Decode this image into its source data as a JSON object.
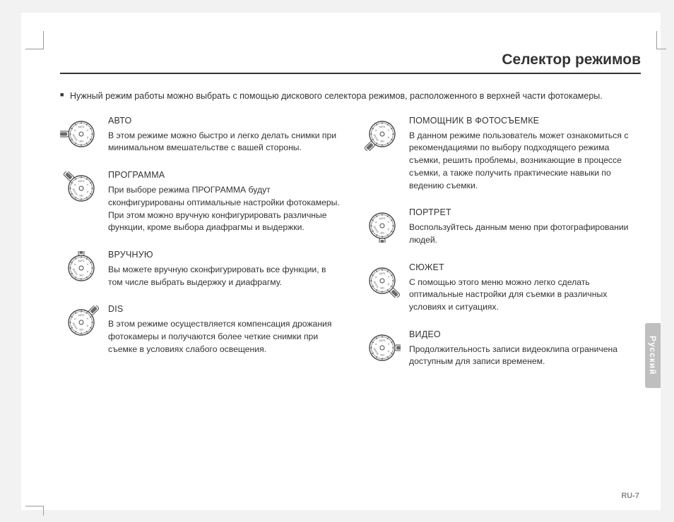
{
  "page": {
    "title": "Селектор режимов",
    "intro": "Нужный режим работы можно выбрать с помощью дискового селектора режимов, расположенного в верхней части фотокамеры.",
    "pageNumber": "RU-7",
    "sideTab": "Русский"
  },
  "dial": {
    "labels": [
      "AUTO",
      "P",
      "M",
      "DIS",
      "SCENE",
      "G"
    ],
    "stroke": "#4a4a4a",
    "fill": "#ffffff",
    "pointer_fill": "#6a6a6a"
  },
  "modes": {
    "left": [
      {
        "title": "АВТО",
        "desc": "В этом режиме можно быстро и легко делать снимки при минимальном вмешательстве с вашей стороны.",
        "pointer_angle": 0
      },
      {
        "title": "ПРОГРАММА",
        "desc": "При выборе режима ПРОГРАММА будут сконфигурированы оптимальные настройки фотокамеры. При этом можно вручную конфигурировать различные функции, кроме выбора диафрагмы и выдержки.",
        "pointer_angle": 45
      },
      {
        "title": "ВРУЧНУЮ",
        "desc": "Вы можете вручную сконфигурировать все функции, в том числе выбрать выдержку и диафрагму.",
        "pointer_angle": 90
      },
      {
        "title": "DIS",
        "desc": "В этом режиме осуществляется компенсация дрожания фотокамеры и получаются более четкие снимки при съемке в условиях слабого освещения.",
        "pointer_angle": 135
      }
    ],
    "right": [
      {
        "title": "ПОМОЩНИК В ФОТОСЪЕМКЕ",
        "desc": "В данном режиме пользователь может ознакомиться с рекомендациями по выбору подходящего режима съемки, решить проблемы, возникающие в процессе съемки, а также получить практические навыки по ведению съемки.",
        "pointer_angle": 315
      },
      {
        "title": "ПОРТРЕТ",
        "desc": "Воспользуйтесь данным меню при фотографировании людей.",
        "pointer_angle": 270
      },
      {
        "title": "СЮЖЕТ",
        "desc": "С помощью этого меню можно легко сделать оптимальные настройки для съемки в различных условиях и ситуациях.",
        "pointer_angle": 225
      },
      {
        "title": "ВИДЕО",
        "desc": "Продолжительность записи видеоклипа ограничена доступным для записи временем.",
        "pointer_angle": 180
      }
    ]
  }
}
